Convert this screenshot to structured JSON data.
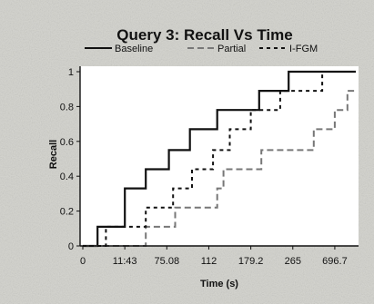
{
  "chart_data": {
    "type": "line",
    "title": "Query 3: Recall Vs Time",
    "xlabel": "Time (s)",
    "ylabel": "Recall",
    "x_tick_labels": [
      "0",
      "11:43",
      "75.08",
      "112",
      "179.2",
      "265",
      "696.7"
    ],
    "y_tick_labels": [
      "0",
      "0.2",
      "0.4",
      "0.6",
      "0.8",
      "1"
    ],
    "ylim": [
      0,
      1
    ],
    "grid": false,
    "legend_position": "top",
    "series": [
      {
        "name": "Baseline",
        "style": "solid",
        "color": "#111111",
        "x": [
          0,
          0.35,
          0.35,
          1.0,
          1.0,
          1.5,
          1.5,
          2.05,
          2.05,
          2.55,
          2.55,
          3.2,
          3.2,
          4.2,
          4.2,
          4.9,
          4.9,
          5.4,
          5.4,
          6.25,
          6.25,
          6.5
        ],
        "y": [
          0,
          0,
          0.11,
          0.11,
          0.33,
          0.33,
          0.44,
          0.44,
          0.55,
          0.55,
          0.67,
          0.67,
          0.78,
          0.78,
          0.89,
          0.89,
          1.0,
          1.0,
          1.0,
          1.0,
          1.0,
          1.0
        ]
      },
      {
        "name": "Partial",
        "style": "dash",
        "color": "#777777",
        "x": [
          0,
          1.5,
          1.5,
          2.2,
          2.2,
          3.2,
          3.2,
          3.35,
          3.35,
          4.25,
          4.25,
          5.5,
          5.5,
          6.0,
          6.0,
          6.3,
          6.3,
          6.5
        ],
        "y": [
          0,
          0,
          0.11,
          0.11,
          0.22,
          0.22,
          0.33,
          0.33,
          0.44,
          0.44,
          0.55,
          0.55,
          0.67,
          0.67,
          0.78,
          0.78,
          0.89,
          0.89
        ]
      },
      {
        "name": "I-FGM",
        "style": "dot",
        "color": "#111111",
        "x": [
          0,
          0.55,
          0.55,
          1.5,
          1.5,
          2.15,
          2.15,
          2.6,
          2.6,
          3.1,
          3.1,
          3.5,
          3.5,
          4.0,
          4.0,
          4.7,
          4.7,
          5.7,
          5.7,
          6.2,
          6.2,
          6.5
        ],
        "y": [
          0,
          0,
          0.11,
          0.11,
          0.22,
          0.22,
          0.33,
          0.33,
          0.44,
          0.44,
          0.55,
          0.55,
          0.67,
          0.67,
          0.78,
          0.78,
          0.89,
          0.89,
          1.0,
          1.0,
          1.0,
          1.0
        ]
      }
    ],
    "colors": {
      "background": "#d2d2cc",
      "plot_area": "#ffffff",
      "axis": "#111111"
    }
  }
}
